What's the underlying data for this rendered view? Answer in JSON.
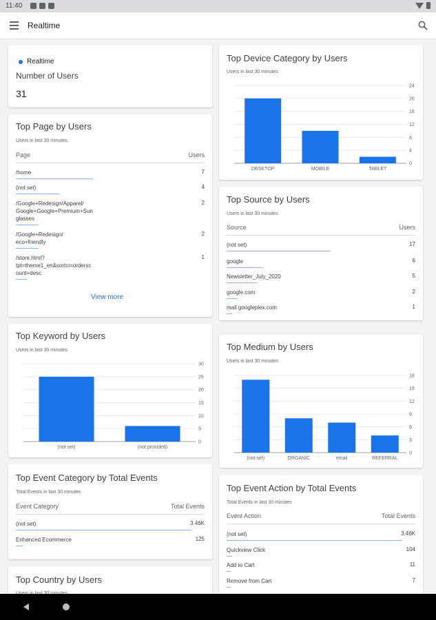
{
  "status_bar": {
    "time": "11:40"
  },
  "app_bar": {
    "title": "Realtime"
  },
  "realtime": {
    "label": "Realtime",
    "metric": "Number of Users",
    "value": "31"
  },
  "top_page": {
    "title": "Top Page by Users",
    "subtitle": "Users in last 30 minutes",
    "col_left": "Page",
    "col_right": "Users",
    "rows": [
      {
        "label": "/home",
        "value": "7",
        "share": 0.41
      },
      {
        "label": "(not set)",
        "value": "4",
        "share": 0.23
      },
      {
        "label": "/Google+Redesign/Apparel/\nGoogle+Google+Premium+Sun\nglasses",
        "value": "2",
        "share": 0.12
      },
      {
        "label": "/Google+Redesign/\neco+friendly",
        "value": "2",
        "share": 0.12
      },
      {
        "label": "/store.html?\ntpt=theme1_en&sortci=ordersc\nount+desc",
        "value": "1",
        "share": 0.06
      }
    ],
    "view_more": "View more"
  },
  "top_keyword": {
    "title": "Top Keyword by Users",
    "subtitle": "Users in last 30 minutes"
  },
  "top_event_category": {
    "title": "Top Event Category by Total Events",
    "subtitle": "Total Events in last 30 minutes",
    "col_left": "Event Category",
    "col_right": "Total Events",
    "rows": [
      {
        "label": "(not set)",
        "value": "3.46K",
        "share": 0.93
      },
      {
        "label": "Enhanced Ecommerce",
        "value": "125",
        "share": 0.035
      }
    ]
  },
  "top_country": {
    "title": "Top Country by Users",
    "subtitle": "Users in last 30 minutes"
  },
  "top_device": {
    "title": "Top Device Category by Users",
    "subtitle": "Users in last 30 minutes"
  },
  "top_source": {
    "title": "Top Source by Users",
    "subtitle": "Users in last 30 minutes",
    "col_left": "Source",
    "col_right": "Users",
    "rows": [
      {
        "label": "(not set)",
        "value": "17",
        "share": 0.55
      },
      {
        "label": "google",
        "value": "6",
        "share": 0.19
      },
      {
        "label": "Newsletter_July_2020",
        "value": "5",
        "share": 0.16
      },
      {
        "label": "google.com",
        "value": "2",
        "share": 0.06
      },
      {
        "label": "mall.googleplex.com",
        "value": "1",
        "share": 0.03
      }
    ]
  },
  "top_medium": {
    "title": "Top Medium by Users",
    "subtitle": "Users in last 30 minutes"
  },
  "top_event_action": {
    "title": "Top Event Action by Total Events",
    "subtitle": "Total Events in last 30 minutes",
    "col_left": "Event Action",
    "col_right": "Total Events",
    "rows": [
      {
        "label": "(not set)",
        "value": "3.46K",
        "share": 0.93
      },
      {
        "label": "Quickview Click",
        "value": "104",
        "share": 0.03
      },
      {
        "label": "Add to Cart",
        "value": "11",
        "share": 0.01
      },
      {
        "label": "Remove from Cart",
        "value": "7",
        "share": 0.005
      }
    ]
  },
  "chart_data": [
    {
      "type": "bar",
      "name": "keyword",
      "categories": [
        "(not set)",
        "(not provided)"
      ],
      "values": [
        25,
        6
      ],
      "yticks": [
        0,
        5,
        10,
        15,
        20,
        25,
        30
      ],
      "ylim": [
        0,
        30
      ],
      "bar_color": "#1a73e8"
    },
    {
      "type": "bar",
      "name": "device",
      "categories": [
        "DESKTOP",
        "MOBILE",
        "TABLET"
      ],
      "values": [
        20,
        10,
        2
      ],
      "yticks": [
        0,
        4,
        8,
        12,
        16,
        20,
        24
      ],
      "ylim": [
        0,
        24
      ],
      "bar_color": "#1a73e8"
    },
    {
      "type": "bar",
      "name": "medium",
      "categories": [
        "(not set)",
        "ORGANIC",
        "email",
        "REFERRAL"
      ],
      "values": [
        17,
        8,
        7,
        4
      ],
      "yticks": [
        0,
        3,
        6,
        9,
        12,
        15,
        18
      ],
      "ylim": [
        0,
        18
      ],
      "bar_color": "#1a73e8"
    }
  ]
}
